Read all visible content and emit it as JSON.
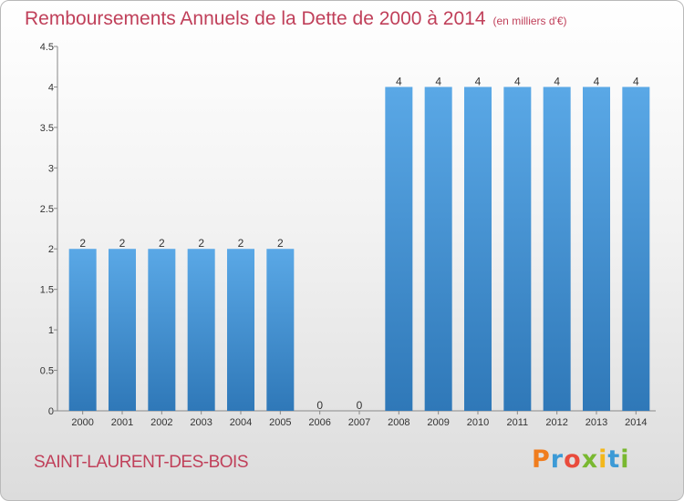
{
  "title": "Remboursements Annuels de la Dette de 2000 à 2014",
  "unit": "(en milliers d'€)",
  "commune": "SAINT-LAURENT-DES-BOIS",
  "logo": {
    "letters": [
      "P",
      "r",
      "o",
      "x",
      "i",
      "t",
      "i"
    ],
    "colors": [
      "#f07d1e",
      "#3c9ad6",
      "#e94b3c",
      "#79b830",
      "#f3b71a",
      "#3c9ad6",
      "#79b830"
    ]
  },
  "colors": {
    "bar": "#5aa8e6",
    "bar_dark": "#2f78b8",
    "accent": "#c0405a"
  },
  "chart_data": {
    "type": "bar",
    "categories": [
      "2000",
      "2001",
      "2002",
      "2003",
      "2004",
      "2005",
      "2006",
      "2007",
      "2008",
      "2009",
      "2010",
      "2011",
      "2012",
      "2013",
      "2014"
    ],
    "values": [
      2,
      2,
      2,
      2,
      2,
      2,
      0,
      0,
      4,
      4,
      4,
      4,
      4,
      4,
      4
    ],
    "data_labels": [
      "2",
      "2",
      "2",
      "2",
      "2",
      "2",
      "0",
      "0",
      "4",
      "4",
      "4",
      "4",
      "4",
      "4",
      "4"
    ],
    "ylim": [
      0,
      4.5
    ],
    "yticks": [
      "0",
      "0.5",
      "1",
      "1.5",
      "2",
      "2.5",
      "3",
      "3.5",
      "4",
      "4.5"
    ],
    "grid": false,
    "xlabel": "",
    "ylabel": ""
  }
}
